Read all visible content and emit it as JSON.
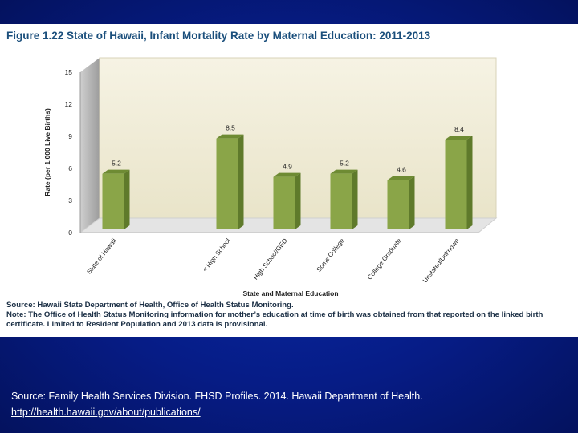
{
  "figure_title": "Figure 1.22 State of Hawaii, Infant Mortality Rate by Maternal Education: 2011-2013",
  "chart_data": {
    "type": "bar",
    "title": "Figure 1.22 State of Hawaii, Infant Mortality Rate by Maternal Education: 2011-2013",
    "xlabel": "State and Maternal Education",
    "ylabel": "Rate (per 1,000 Live Births)",
    "ylim": [
      0,
      15
    ],
    "yticks": [
      0,
      3,
      6,
      9,
      12,
      15
    ],
    "categories": [
      "State of Hawaii",
      "< High School",
      "High School/GED",
      "Some College",
      "College Graduate",
      "Unstated/Unknown"
    ],
    "values": [
      5.2,
      8.5,
      4.9,
      5.2,
      4.6,
      8.4
    ],
    "value_labels": [
      "5.2",
      "8.5",
      "4.9",
      "5.2",
      "4.6",
      "8.4"
    ],
    "bar_color": "#8aa548",
    "grid": false,
    "legend": "none"
  },
  "notes": {
    "source": "Source: Hawaii State Department of Health, Office of Health Status Monitoring.",
    "note": "Note: The Office of Health Status Monitoring information for mother’s education at time of birth was obtained from that reported on the linked birth certificate. Limited to Resident Population and 2013 data is provisional."
  },
  "footer": {
    "source": "Source: Family Health Services Division. FHSD Profiles. 2014. Hawaii Department of Health.",
    "url": "http://health.hawaii.gov/about/publications/"
  }
}
